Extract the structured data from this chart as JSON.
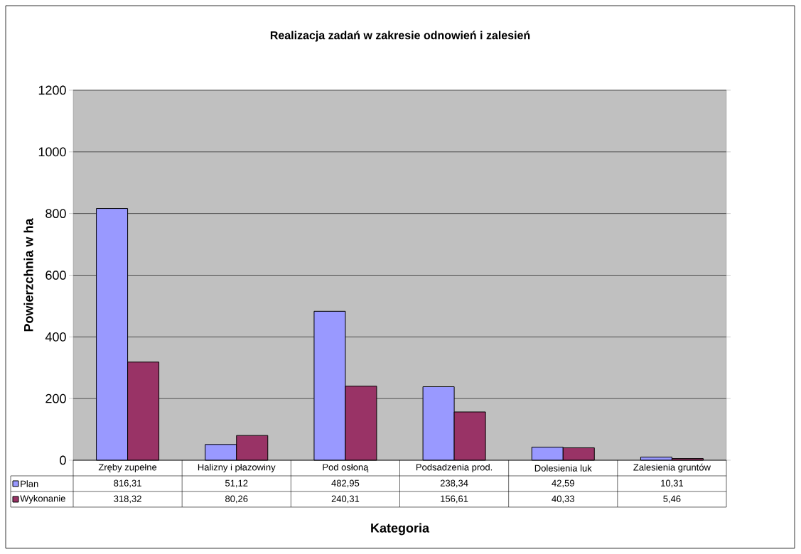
{
  "chart_data": {
    "type": "bar",
    "title": "Realizacja zadań w zakresie odnowień i zalesień",
    "xlabel": "Kategoria",
    "ylabel": "Powierzchnia w ha",
    "categories": [
      "Zręby zupełne",
      "Halizny i płazowiny",
      "Pod osłoną",
      "Podsadzenia prod.",
      "Dolesienia luk",
      "Zalesienia gruntów"
    ],
    "series": [
      {
        "name": "Plan",
        "color": "#9999ff",
        "values": [
          816.31,
          51.12,
          482.95,
          238.34,
          42.59,
          10.31
        ],
        "value_labels": [
          "816,31",
          "51,12",
          "482,95",
          "238,34",
          "42,59",
          "10,31"
        ]
      },
      {
        "name": "Wykonanie",
        "color": "#993366",
        "values": [
          318.32,
          80.26,
          240.31,
          156.61,
          40.33,
          5.46
        ],
        "value_labels": [
          "318,32",
          "80,26",
          "240,31",
          "156,61",
          "40,33",
          "5,46"
        ]
      }
    ],
    "ylim": [
      0,
      1200
    ],
    "yticks": [
      0,
      200,
      400,
      600,
      800,
      1000,
      1200
    ],
    "grid": "y",
    "legend": "bottom"
  }
}
